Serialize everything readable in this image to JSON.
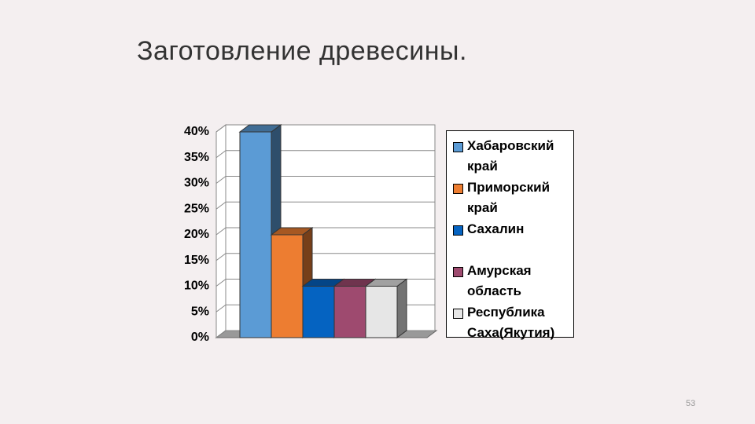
{
  "chart_data": {
    "type": "bar3d",
    "title": "Заготовление древесины.",
    "categories": [
      null
    ],
    "series": [
      {
        "name": "Хабаровский край",
        "color": "#5b9bd5",
        "values": [
          40
        ]
      },
      {
        "name": "Приморский край",
        "color": "#ed7d31",
        "values": [
          20
        ]
      },
      {
        "name": "Сахалин",
        "color": "#0563c1",
        "values": [
          10
        ]
      },
      {
        "name": "Амурская область",
        "color": "#9e4a6f",
        "values": [
          10
        ]
      },
      {
        "name": "Республика Саха(Якутия)",
        "color": "#e6e6e6",
        "values": [
          10
        ]
      }
    ],
    "ylim": [
      0,
      40
    ],
    "yticks": [
      {
        "value": 0,
        "label": "0%"
      },
      {
        "value": 5,
        "label": "5%"
      },
      {
        "value": 10,
        "label": "10%"
      },
      {
        "value": 15,
        "label": "15%"
      },
      {
        "value": 20,
        "label": "20%"
      },
      {
        "value": 25,
        "label": "25%"
      },
      {
        "value": 30,
        "label": "30%"
      },
      {
        "value": 35,
        "label": "35%"
      },
      {
        "value": 40,
        "label": "40%"
      }
    ],
    "grid": true,
    "legend": "right"
  },
  "page_number": "53"
}
